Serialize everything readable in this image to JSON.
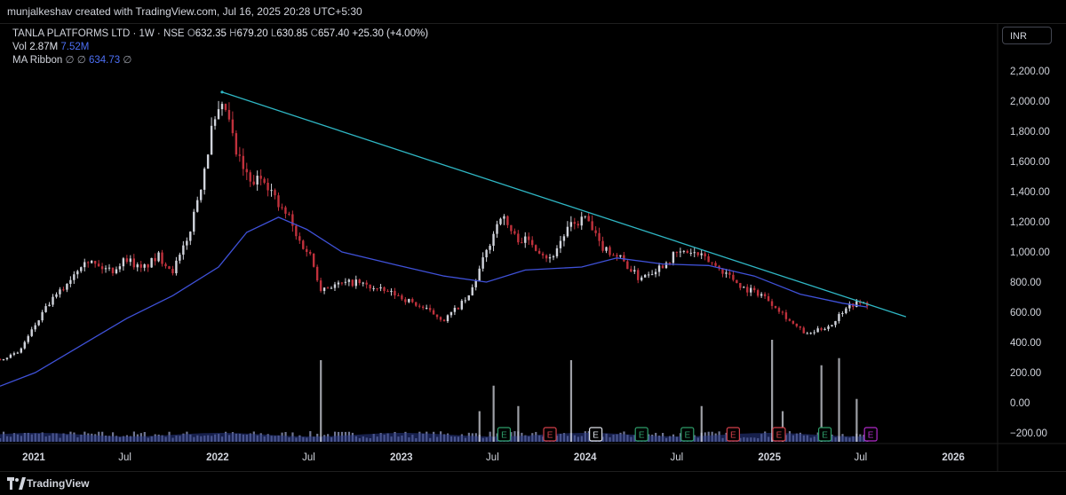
{
  "header": {
    "author_line": "munjalkeshav created with TradingView.com, Jul 16, 2025 20:28 UTC+5:30"
  },
  "legend": {
    "symbol": "TANLA PLATFORMS LTD · 1W · NSE",
    "open_label": "O",
    "open": "632.35",
    "high_label": "H",
    "high": "679.20",
    "low_label": "L",
    "low": "630.85",
    "close_label": "C",
    "close": "657.40",
    "change": "+25.30 (+4.00%)",
    "vol_label": "Vol",
    "vol": "2.87M",
    "vol_ma": "7.52M",
    "ma_label": "MA Ribbon",
    "ma_na1": "∅",
    "ma_na2": "∅",
    "ma_value": "634.73",
    "ma_na3": "∅"
  },
  "currency": "INR",
  "footer": {
    "brand": "TradingView"
  },
  "colors": {
    "up": "#d1d4dc",
    "down": "#c0313c",
    "ma": "#3f51d8",
    "trendline": "#2fb7c4",
    "vol_ma": "#2a3a8a",
    "earn_green": "#2e9e6a",
    "earn_red": "#d3404a",
    "earn_white": "#e0e3eb",
    "earn_purple": "#b02bc9"
  },
  "chart_data": {
    "type": "candlestick",
    "interval": "1W",
    "y_ticks": [
      "2,200.00",
      "2,000.00",
      "1,800.00",
      "1,600.00",
      "1,400.00",
      "1,200.00",
      "1,000.00",
      "800.00",
      "600.00",
      "400.00",
      "200.00",
      "0.00",
      "−200.00"
    ],
    "y_tick_values": [
      2200,
      2000,
      1800,
      1600,
      1400,
      1200,
      1000,
      800,
      600,
      400,
      200,
      0,
      -200
    ],
    "x_ticks": [
      {
        "label": "2021",
        "date": "2021-01-01",
        "bold": true
      },
      {
        "label": "Jul",
        "date": "2021-07-01",
        "bold": false
      },
      {
        "label": "2022",
        "date": "2022-01-01",
        "bold": true
      },
      {
        "label": "Jul",
        "date": "2022-07-01",
        "bold": false
      },
      {
        "label": "2023",
        "date": "2023-01-01",
        "bold": true
      },
      {
        "label": "Jul",
        "date": "2023-07-01",
        "bold": false
      },
      {
        "label": "2024",
        "date": "2024-01-01",
        "bold": true
      },
      {
        "label": "Jul",
        "date": "2024-07-01",
        "bold": false
      },
      {
        "label": "2025",
        "date": "2025-01-01",
        "bold": true
      },
      {
        "label": "Jul",
        "date": "2025-07-01",
        "bold": false
      },
      {
        "label": "2026",
        "date": "2026-01-01",
        "bold": true
      }
    ],
    "x_start": "2020-10-26",
    "x_end": "2026-03-30",
    "close_path": [
      {
        "date": "2020-10-26",
        "close": 290
      },
      {
        "date": "2020-12-01",
        "close": 330
      },
      {
        "date": "2021-01-05",
        "close": 520
      },
      {
        "date": "2021-02-01",
        "close": 660
      },
      {
        "date": "2021-03-01",
        "close": 760
      },
      {
        "date": "2021-04-12",
        "close": 960
      },
      {
        "date": "2021-05-10",
        "close": 900
      },
      {
        "date": "2021-06-07",
        "close": 880
      },
      {
        "date": "2021-07-05",
        "close": 960
      },
      {
        "date": "2021-08-02",
        "close": 880
      },
      {
        "date": "2021-09-06",
        "close": 970
      },
      {
        "date": "2021-10-04",
        "close": 880
      },
      {
        "date": "2021-11-01",
        "close": 1060
      },
      {
        "date": "2021-11-29",
        "close": 1450
      },
      {
        "date": "2021-12-20",
        "close": 1800
      },
      {
        "date": "2022-01-03",
        "close": 1900
      },
      {
        "date": "2022-01-17",
        "close": 1950
      },
      {
        "date": "2022-02-07",
        "close": 1650
      },
      {
        "date": "2022-03-07",
        "close": 1450
      },
      {
        "date": "2022-04-04",
        "close": 1500
      },
      {
        "date": "2022-05-02",
        "close": 1300
      },
      {
        "date": "2022-05-23",
        "close": 1230
      },
      {
        "date": "2022-06-06",
        "close": 1100
      },
      {
        "date": "2022-07-04",
        "close": 980
      },
      {
        "date": "2022-07-25",
        "close": 760
      },
      {
        "date": "2022-08-22",
        "close": 780
      },
      {
        "date": "2022-10-03",
        "close": 800
      },
      {
        "date": "2022-11-14",
        "close": 750
      },
      {
        "date": "2022-12-19",
        "close": 720
      },
      {
        "date": "2023-02-06",
        "close": 640
      },
      {
        "date": "2023-03-27",
        "close": 550
      },
      {
        "date": "2023-05-15",
        "close": 700
      },
      {
        "date": "2023-06-19",
        "close": 1000
      },
      {
        "date": "2023-07-17",
        "close": 1250
      },
      {
        "date": "2023-08-14",
        "close": 1100
      },
      {
        "date": "2023-09-18",
        "close": 1060
      },
      {
        "date": "2023-10-23",
        "close": 950
      },
      {
        "date": "2023-11-27",
        "close": 1150
      },
      {
        "date": "2024-01-01",
        "close": 1230
      },
      {
        "date": "2024-01-29",
        "close": 1050
      },
      {
        "date": "2024-03-11",
        "close": 960
      },
      {
        "date": "2024-04-15",
        "close": 830
      },
      {
        "date": "2024-05-27",
        "close": 900
      },
      {
        "date": "2024-07-01",
        "close": 990
      },
      {
        "date": "2024-07-29",
        "close": 1000
      },
      {
        "date": "2024-09-02",
        "close": 940
      },
      {
        "date": "2024-10-07",
        "close": 860
      },
      {
        "date": "2024-11-11",
        "close": 760
      },
      {
        "date": "2024-12-16",
        "close": 720
      },
      {
        "date": "2025-01-20",
        "close": 620
      },
      {
        "date": "2025-02-17",
        "close": 520
      },
      {
        "date": "2025-03-17",
        "close": 450
      },
      {
        "date": "2025-04-07",
        "close": 480
      },
      {
        "date": "2025-05-05",
        "close": 520
      },
      {
        "date": "2025-06-02",
        "close": 640
      },
      {
        "date": "2025-06-23",
        "close": 660
      },
      {
        "date": "2025-07-14",
        "close": 657
      }
    ],
    "ma_path": [
      {
        "date": "2020-10-26",
        "value": 110
      },
      {
        "date": "2021-01-04",
        "value": 200
      },
      {
        "date": "2021-04-05",
        "value": 380
      },
      {
        "date": "2021-07-05",
        "value": 560
      },
      {
        "date": "2021-10-04",
        "value": 710
      },
      {
        "date": "2022-01-03",
        "value": 900
      },
      {
        "date": "2022-02-28",
        "value": 1130
      },
      {
        "date": "2022-05-02",
        "value": 1230
      },
      {
        "date": "2022-06-27",
        "value": 1150
      },
      {
        "date": "2022-09-05",
        "value": 1000
      },
      {
        "date": "2022-12-26",
        "value": 910
      },
      {
        "date": "2023-03-27",
        "value": 840
      },
      {
        "date": "2023-06-19",
        "value": 800
      },
      {
        "date": "2023-09-04",
        "value": 880
      },
      {
        "date": "2023-12-25",
        "value": 900
      },
      {
        "date": "2024-03-04",
        "value": 960
      },
      {
        "date": "2024-06-03",
        "value": 920
      },
      {
        "date": "2024-09-02",
        "value": 910
      },
      {
        "date": "2024-12-02",
        "value": 840
      },
      {
        "date": "2025-03-03",
        "value": 720
      },
      {
        "date": "2025-05-26",
        "value": 660
      },
      {
        "date": "2025-07-14",
        "value": 634.73
      }
    ],
    "trendline": [
      {
        "date": "2022-01-10",
        "value": 2060
      },
      {
        "date": "2025-09-29",
        "value": 570
      }
    ],
    "volume_spikes": [
      {
        "date": "2022-07-25",
        "rel": 0.8
      },
      {
        "date": "2023-06-05",
        "rel": 0.3
      },
      {
        "date": "2023-07-03",
        "rel": 0.55
      },
      {
        "date": "2023-08-21",
        "rel": 0.35
      },
      {
        "date": "2023-12-04",
        "rel": 0.8
      },
      {
        "date": "2024-08-19",
        "rel": 0.35
      },
      {
        "date": "2025-01-06",
        "rel": 1.0
      },
      {
        "date": "2025-01-27",
        "rel": 0.3
      },
      {
        "date": "2025-04-14",
        "rel": 0.75
      },
      {
        "date": "2025-05-19",
        "rel": 0.82
      },
      {
        "date": "2025-06-23",
        "rel": 0.42
      }
    ],
    "earnings": [
      {
        "date": "2023-07-24",
        "label": "E",
        "kind": "green"
      },
      {
        "date": "2023-10-23",
        "label": "E",
        "kind": "red"
      },
      {
        "date": "2024-01-22",
        "label": "E",
        "kind": "white"
      },
      {
        "date": "2024-04-22",
        "label": "E",
        "kind": "green"
      },
      {
        "date": "2024-07-22",
        "label": "E",
        "kind": "green"
      },
      {
        "date": "2024-10-21",
        "label": "E",
        "kind": "red"
      },
      {
        "date": "2025-01-20",
        "label": "E",
        "kind": "red"
      },
      {
        "date": "2025-04-21",
        "label": "E",
        "kind": "green"
      },
      {
        "date": "2025-07-21",
        "label": "E",
        "kind": "purple"
      }
    ],
    "y_range": [
      -250,
      2250
    ],
    "scale": "linear"
  }
}
